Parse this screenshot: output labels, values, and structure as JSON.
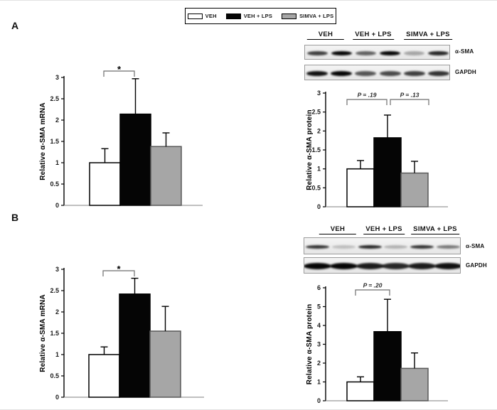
{
  "figure": {
    "panel_a_label": "A",
    "panel_b_label": "B"
  },
  "colors": {
    "bar_white": "#ffffff",
    "bar_black": "#050505",
    "bar_gray": "#a6a6a6",
    "gray_bar_border": "#595959",
    "bar_border": "#000000",
    "bracket": "#6e6e6e",
    "baseline": "#808080"
  },
  "legend": {
    "items": [
      {
        "label": "VEH",
        "color": "#ffffff"
      },
      {
        "label": "VEH + LPS",
        "color": "#050505"
      },
      {
        "label": "SIMVA + LPS",
        "color": "#a6a6a6"
      }
    ]
  },
  "chart_data": [
    {
      "id": "a_mrna",
      "type": "bar",
      "title": "",
      "xlabel": "",
      "ylabel": "Relative α-SMA mRNA",
      "categories": [
        "VEH",
        "VEH + LPS",
        "SIMVA + LPS"
      ],
      "values": [
        1.0,
        2.14,
        1.38
      ],
      "errors_plus": [
        0.33,
        0.83,
        0.32
      ],
      "bar_colors": [
        "#ffffff",
        "#050505",
        "#a6a6a6"
      ],
      "ylim": [
        0,
        3
      ],
      "yticks": [
        0,
        0.5,
        1,
        1.5,
        2,
        2.5,
        3
      ],
      "grid": false,
      "brackets": [
        {
          "from": 0,
          "to": 1,
          "label": "*"
        }
      ]
    },
    {
      "id": "a_protein",
      "type": "bar",
      "title": "",
      "xlabel": "",
      "ylabel": "Relative α-SMA protein",
      "categories": [
        "VEH",
        "VEH + LPS",
        "SIMVA + LPS"
      ],
      "values": [
        1.0,
        1.82,
        0.89
      ],
      "errors_plus": [
        0.22,
        0.6,
        0.31
      ],
      "bar_colors": [
        "#ffffff",
        "#050505",
        "#a6a6a6"
      ],
      "ylim": [
        0,
        3
      ],
      "yticks": [
        0,
        0.5,
        1,
        1.5,
        2,
        2.5,
        3
      ],
      "grid": false,
      "brackets": [
        {
          "from": 0,
          "to": 1,
          "label": "P = .19"
        },
        {
          "from": 1,
          "to": 2,
          "label": "P = .13"
        }
      ]
    },
    {
      "id": "b_mrna",
      "type": "bar",
      "title": "",
      "xlabel": "",
      "ylabel": "Relative α-SMA mRNA",
      "categories": [
        "VEH",
        "VEH + LPS",
        "SIMVA + LPS"
      ],
      "values": [
        1.0,
        2.42,
        1.55
      ],
      "errors_plus": [
        0.18,
        0.37,
        0.58
      ],
      "bar_colors": [
        "#ffffff",
        "#050505",
        "#a6a6a6"
      ],
      "ylim": [
        0,
        3
      ],
      "yticks": [
        0,
        0.5,
        1,
        1.5,
        2,
        2.5,
        3
      ],
      "grid": false,
      "brackets": [
        {
          "from": 0,
          "to": 1,
          "label": "*"
        }
      ]
    },
    {
      "id": "b_protein",
      "type": "bar",
      "title": "",
      "xlabel": "",
      "ylabel": "Relative α-SMA protein",
      "categories": [
        "VEH",
        "VEH + LPS",
        "SIMVA + LPS"
      ],
      "values": [
        1.0,
        3.67,
        1.72
      ],
      "errors_plus": [
        0.27,
        1.72,
        0.82
      ],
      "bar_colors": [
        "#ffffff",
        "#050505",
        "#a6a6a6"
      ],
      "ylim": [
        0,
        6
      ],
      "yticks": [
        0,
        1,
        2,
        3,
        4,
        5,
        6
      ],
      "grid": false,
      "brackets": [
        {
          "from": 0,
          "to": 1,
          "label": "P = .20"
        }
      ]
    }
  ],
  "blots": {
    "a": {
      "lane_headers": [
        "VEH",
        "VEH + LPS",
        "SIMVA + LPS"
      ],
      "rows": [
        {
          "label": "α-SMA",
          "band_intensities": [
            0.75,
            1.0,
            0.6,
            1.0,
            0.3,
            0.85
          ]
        },
        {
          "label": "GAPDH",
          "band_intensities": [
            0.95,
            1.0,
            0.65,
            0.7,
            0.75,
            0.8
          ]
        }
      ]
    },
    "b": {
      "lane_headers": [
        "VEH",
        "VEH + LPS",
        "SIMVA + LPS"
      ],
      "rows": [
        {
          "label": "α-SMA",
          "band_intensities": [
            0.8,
            0.2,
            0.85,
            0.25,
            0.8,
            0.5
          ]
        },
        {
          "label": "GAPDH",
          "band_intensities": [
            1.0,
            1.0,
            0.9,
            0.85,
            0.9,
            0.95
          ]
        }
      ]
    }
  }
}
